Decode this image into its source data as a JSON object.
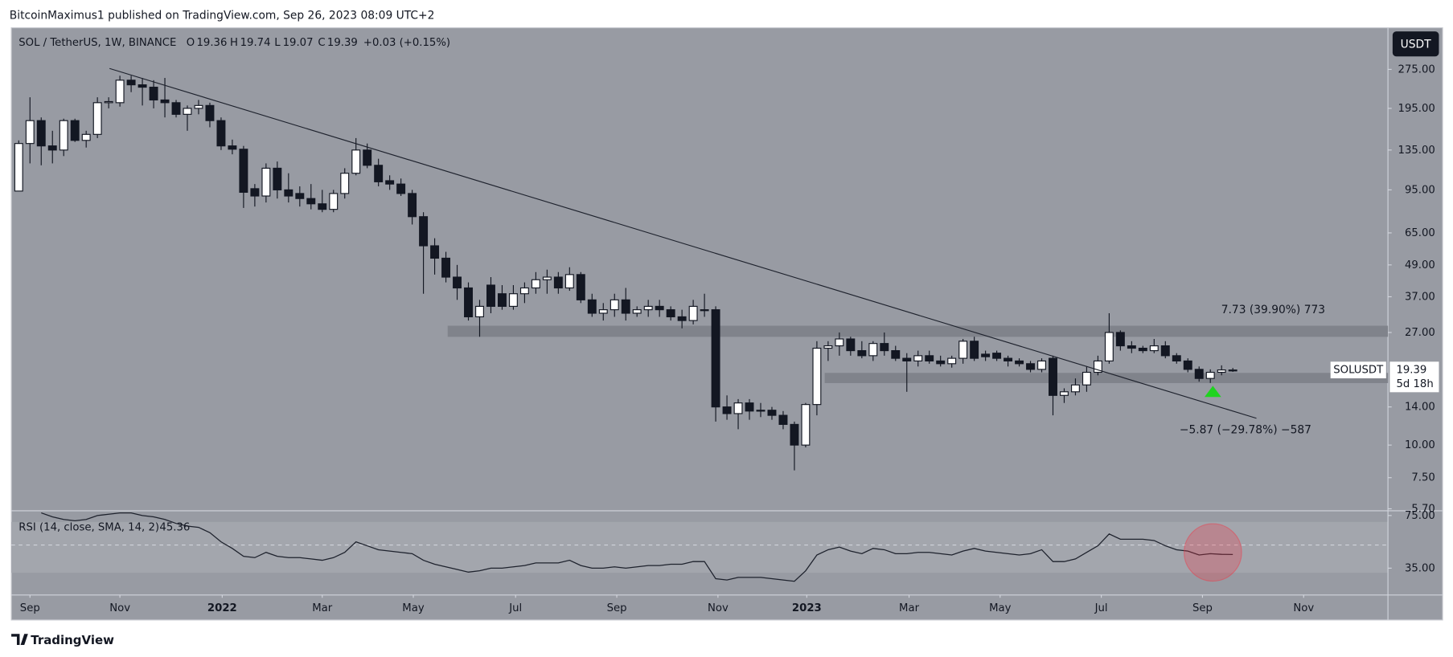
{
  "header": {
    "published": "BitcoinMaximus1 published on TradingView.com, Sep 26, 2023 08:09 UTC+2"
  },
  "footer": {
    "brand": "TradingView"
  },
  "chart_data": [
    {
      "type": "candlestick",
      "title": "SOL / TetherUS, 1W, BINANCE",
      "ohlc_letters": [
        "O",
        "H",
        "L",
        "C"
      ],
      "change": "+0.03 (+0.15%)",
      "symbol": "SOLUSDT",
      "currency": "USDT",
      "countdown": "5d 18h",
      "annotations": [
        "7.73 (39.90%) 773",
        "−5.87 (−29.78%) −587"
      ],
      "up_color": "#ffffff",
      "down_color": "#131722",
      "border_color": "#131722",
      "log_scale": true,
      "open": [
        94,
        143,
        175,
        140,
        135,
        175,
        147,
        155,
        205,
        205,
        250,
        240,
        235,
        210,
        205,
        185,
        195,
        200,
        175,
        140,
        136,
        96,
        90,
        115,
        95,
        92,
        88,
        84,
        80,
        92,
        110,
        135,
        118,
        103,
        100,
        92,
        75,
        58,
        52,
        44,
        40,
        31,
        41,
        38,
        34,
        38,
        40,
        43,
        44,
        40,
        45,
        36,
        32,
        33,
        36,
        32,
        33,
        34,
        33,
        31,
        30,
        33,
        33,
        14,
        13.2,
        14.5,
        13.5,
        13.6,
        13,
        12,
        10,
        14.3,
        23.5,
        24,
        25.5,
        23,
        22,
        24.5,
        23,
        21.5,
        21,
        22,
        21,
        20.5,
        21.5,
        25,
        22.3,
        22.5,
        21.5,
        21,
        20.5,
        19.5,
        21.5,
        15.5,
        16,
        17,
        19,
        21,
        27,
        24,
        23.5,
        23,
        24,
        22,
        21,
        19.5,
        18,
        19,
        19.36
      ],
      "high": [
        147,
        215,
        180,
        160,
        178,
        178,
        160,
        215,
        215,
        260,
        260,
        255,
        250,
        255,
        210,
        200,
        210,
        205,
        180,
        148,
        140,
        100,
        120,
        122,
        110,
        98,
        100,
        95,
        95,
        115,
        150,
        143,
        125,
        108,
        105,
        95,
        78,
        62,
        55,
        49,
        42,
        36,
        44,
        41,
        41,
        42,
        46,
        47,
        46,
        48,
        46,
        38,
        35,
        38,
        40,
        34,
        36,
        36,
        34,
        33,
        36,
        38,
        34,
        15.5,
        15,
        15,
        14.5,
        14,
        13.5,
        12.3,
        14.5,
        25,
        25,
        27,
        26,
        25,
        25,
        27,
        24,
        22.5,
        23,
        23,
        22,
        22,
        25.5,
        26,
        23,
        23,
        22,
        21.5,
        21,
        21.5,
        22,
        16.5,
        18,
        20,
        22,
        32,
        27.5,
        25,
        24,
        25.5,
        25,
        22.5,
        21.5,
        20,
        19.5,
        20.2,
        19.74
      ],
      "low": [
        94,
        120,
        118,
        120,
        128,
        145,
        138,
        150,
        195,
        198,
        225,
        200,
        195,
        180,
        180,
        160,
        185,
        165,
        135,
        130,
        81,
        82,
        85,
        88,
        85,
        82,
        80,
        78,
        78,
        88,
        108,
        115,
        98,
        95,
        90,
        70,
        38,
        45,
        42,
        36,
        30,
        26,
        32,
        33,
        33,
        35,
        38,
        38,
        38,
        39,
        35,
        31,
        30,
        31,
        30,
        31,
        31,
        31,
        30,
        28,
        29,
        31,
        12.3,
        12.5,
        11.5,
        12.5,
        12.8,
        12.5,
        11.5,
        8,
        9.8,
        13,
        21,
        22,
        22,
        21.5,
        21,
        22,
        21,
        16,
        20,
        20.5,
        20,
        19.8,
        20.5,
        21,
        21,
        21,
        20,
        20,
        19,
        19,
        13,
        14.5,
        15.5,
        16,
        18.5,
        20.5,
        23,
        22.5,
        22.5,
        22.5,
        21.5,
        20.5,
        19,
        17.5,
        17.3,
        18.5,
        19.07
      ],
      "close": [
        143,
        175,
        140,
        135,
        175,
        147,
        155,
        205,
        207,
        250,
        240,
        235,
        210,
        205,
        185,
        195,
        200,
        175,
        140,
        136,
        93,
        90,
        115,
        95,
        90,
        88,
        84,
        80,
        92,
        110,
        135,
        118,
        102,
        100,
        92,
        75,
        58,
        52,
        44,
        40,
        31,
        34,
        34,
        34,
        38,
        40,
        43,
        44,
        40,
        45,
        36,
        32,
        33,
        36,
        32,
        33,
        34,
        33,
        31,
        30,
        34,
        33,
        14,
        13.2,
        14.5,
        13.5,
        13.6,
        13,
        12,
        10,
        14.3,
        23.5,
        24,
        25.5,
        23,
        22,
        24.5,
        23,
        21.5,
        21,
        22,
        21,
        20.5,
        21.5,
        25,
        21.5,
        21.8,
        21.5,
        21,
        20.5,
        19.5,
        21,
        15.5,
        16,
        17,
        19,
        21,
        27,
        24,
        23.5,
        23,
        24,
        22,
        21,
        19.5,
        18,
        19,
        19.4,
        19.39
      ],
      "ylim": [
        5.6,
        397
      ],
      "yticks": [
        {
          "value": 275,
          "label": "275.00"
        },
        {
          "value": 195,
          "label": "195.00"
        },
        {
          "value": 135,
          "label": "135.00"
        },
        {
          "value": 95,
          "label": "95.00"
        },
        {
          "value": 65,
          "label": "65.00"
        },
        {
          "value": 49,
          "label": "49.00"
        },
        {
          "value": 37,
          "label": "37.00"
        },
        {
          "value": 27,
          "label": "27.00"
        },
        {
          "value": 14,
          "label": "14.00"
        },
        {
          "value": 10,
          "label": "10.00"
        },
        {
          "value": 7.5,
          "label": "7.50"
        },
        {
          "value": 5.7,
          "label": "5.70"
        }
      ],
      "xlim": [
        -0.66,
        121.8
      ],
      "xticks": [
        {
          "value": 1.0,
          "label": "Sep"
        },
        {
          "value": 9.0,
          "label": "Nov"
        },
        {
          "value": 18.1,
          "label": "2022"
        },
        {
          "value": 27.0,
          "label": "Mar"
        },
        {
          "value": 35.1,
          "label": "May"
        },
        {
          "value": 44.2,
          "label": "Jul"
        },
        {
          "value": 53.2,
          "label": "Sep"
        },
        {
          "value": 62.2,
          "label": "Nov"
        },
        {
          "value": 70.1,
          "label": "2023"
        },
        {
          "value": 79.2,
          "label": "Mar"
        },
        {
          "value": 87.3,
          "label": "May"
        },
        {
          "value": 96.3,
          "label": "Jul"
        },
        {
          "value": 105.3,
          "label": "Sep"
        },
        {
          "value": 114.3,
          "label": "Nov"
        }
      ]
    },
    {
      "type": "line",
      "title": "RSI (14, close, SMA, 14, 2)",
      "color": "#1e222d",
      "values": [
        null,
        null,
        77,
        74,
        72,
        71,
        72,
        75,
        76,
        77,
        77,
        75,
        74,
        72,
        69,
        67,
        66,
        62,
        55,
        50,
        44,
        43,
        47,
        44,
        43,
        43,
        42,
        41,
        43,
        47,
        55,
        52,
        49,
        48,
        47,
        46,
        41,
        38,
        36,
        34,
        32,
        33,
        35,
        35,
        36,
        37,
        39,
        39,
        39,
        41,
        37,
        35,
        35,
        36,
        35,
        36,
        37,
        37,
        38,
        38,
        40,
        40,
        27,
        26,
        28,
        28,
        28,
        27,
        26,
        25,
        33,
        45,
        49,
        51,
        48,
        46,
        50,
        49,
        46,
        46,
        47,
        47,
        46,
        45,
        48,
        50,
        48,
        47,
        46,
        45,
        46,
        49,
        40,
        40,
        42,
        47,
        52,
        61,
        57,
        57,
        57,
        56,
        52,
        49,
        48,
        45,
        46,
        45.5,
        45.36
      ],
      "ylim": [
        14.6,
        78.6
      ],
      "yticks": [
        {
          "value": 75,
          "label": "75.00"
        },
        {
          "value": 35,
          "label": "35.00"
        }
      ]
    }
  ]
}
